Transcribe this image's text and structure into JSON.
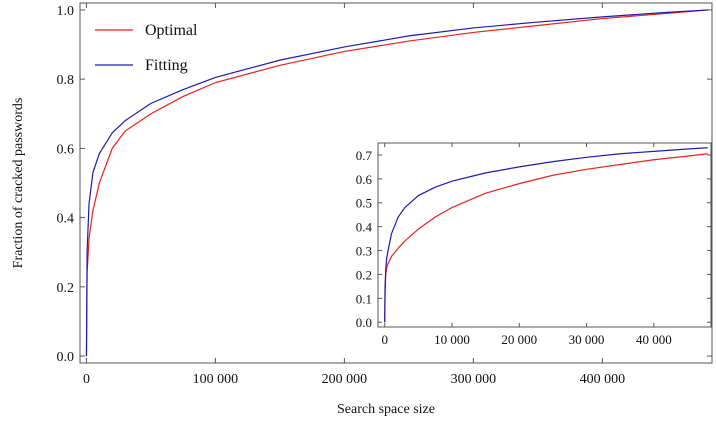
{
  "chart_data": [
    {
      "type": "line",
      "xlabel": "Search space size",
      "ylabel": "Fraction of cracked passwords",
      "xlim": [
        -5000,
        485000
      ],
      "ylim": [
        -0.02,
        1.02
      ],
      "xticks": [
        0,
        100000,
        200000,
        300000,
        400000
      ],
      "xtick_labels": [
        "0",
        "100 000",
        "200 000",
        "300 000",
        "400 000"
      ],
      "yticks": [
        0.0,
        0.2,
        0.4,
        0.6,
        0.8,
        1.0
      ],
      "ytick_labels": [
        "0.0",
        "0.2",
        "0.4",
        "0.6",
        "0.8",
        "1.0"
      ],
      "legend": {
        "placement": "top-left",
        "entries": [
          "Optimal",
          "Fitting"
        ]
      },
      "series": [
        {
          "name": "Optimal",
          "color": "#e8231e",
          "x": [
            0,
            500,
            2000,
            5000,
            10000,
            20000,
            30000,
            50000,
            75000,
            100000,
            150000,
            200000,
            250000,
            300000,
            350000,
            400000,
            450000,
            482000
          ],
          "y": [
            0.0,
            0.24,
            0.34,
            0.42,
            0.5,
            0.6,
            0.65,
            0.7,
            0.75,
            0.79,
            0.84,
            0.88,
            0.91,
            0.935,
            0.955,
            0.975,
            0.99,
            1.0
          ]
        },
        {
          "name": "Fitting",
          "color": "#1c1caa",
          "x": [
            0,
            500,
            2000,
            5000,
            10000,
            20000,
            30000,
            50000,
            75000,
            100000,
            150000,
            200000,
            250000,
            300000,
            350000,
            400000,
            450000,
            482000
          ],
          "y": [
            0.0,
            0.3,
            0.44,
            0.53,
            0.585,
            0.645,
            0.68,
            0.73,
            0.77,
            0.805,
            0.855,
            0.893,
            0.925,
            0.948,
            0.965,
            0.98,
            0.993,
            1.0
          ]
        }
      ]
    },
    {
      "type": "line",
      "xlim": [
        -1000,
        48500
      ],
      "ylim": [
        -0.02,
        0.75
      ],
      "xticks": [
        0,
        10000,
        20000,
        30000,
        40000
      ],
      "xtick_labels": [
        "0",
        "10 000",
        "20 000",
        "30 000",
        "40 000"
      ],
      "yticks": [
        0.0,
        0.1,
        0.2,
        0.3,
        0.4,
        0.5,
        0.6,
        0.7
      ],
      "ytick_labels": [
        "0.0",
        "0.1",
        "0.2",
        "0.3",
        "0.4",
        "0.5",
        "0.6",
        "0.7"
      ],
      "series": [
        {
          "name": "Optimal",
          "color": "#e8231e",
          "x": [
            0,
            50,
            150,
            300,
            500,
            1000,
            2000,
            3000,
            5000,
            7500,
            10000,
            15000,
            20000,
            25000,
            30000,
            35000,
            40000,
            45000,
            48000
          ],
          "y": [
            0.0,
            0.12,
            0.2,
            0.23,
            0.245,
            0.275,
            0.31,
            0.34,
            0.39,
            0.44,
            0.48,
            0.54,
            0.58,
            0.615,
            0.64,
            0.66,
            0.68,
            0.695,
            0.705
          ]
        },
        {
          "name": "Fitting",
          "color": "#1c1caa",
          "x": [
            0,
            50,
            150,
            300,
            500,
            1000,
            2000,
            3000,
            5000,
            7500,
            10000,
            15000,
            20000,
            25000,
            30000,
            35000,
            40000,
            45000,
            48000
          ],
          "y": [
            0.0,
            0.15,
            0.22,
            0.27,
            0.3,
            0.37,
            0.44,
            0.48,
            0.53,
            0.565,
            0.59,
            0.625,
            0.65,
            0.672,
            0.69,
            0.705,
            0.715,
            0.725,
            0.73
          ]
        }
      ]
    }
  ]
}
